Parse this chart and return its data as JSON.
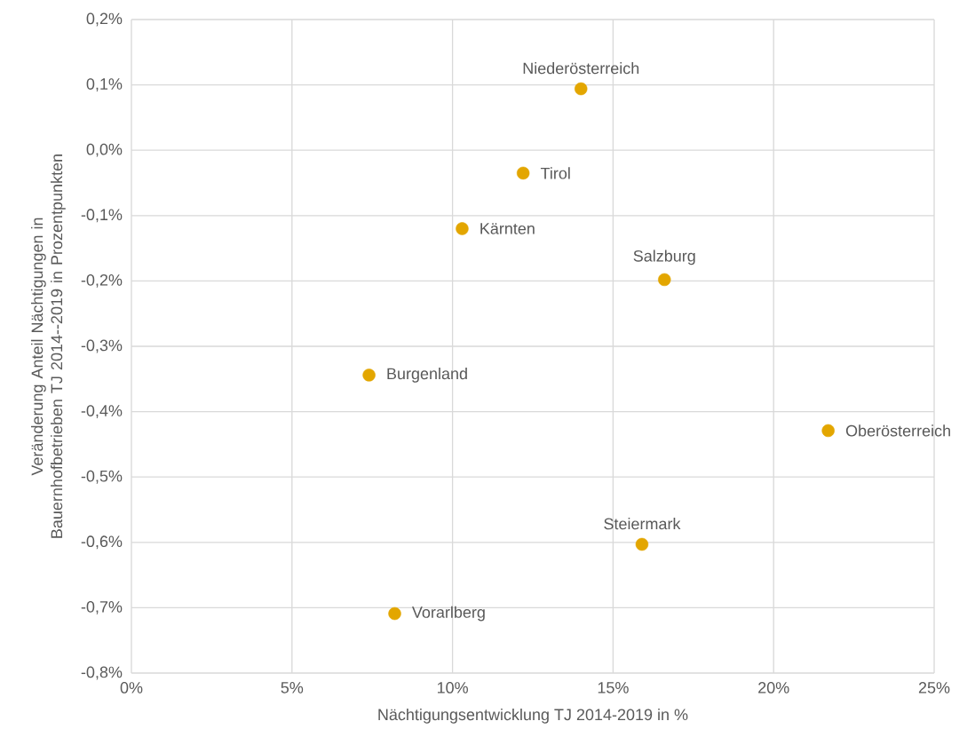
{
  "chart_data": {
    "type": "scatter",
    "xlabel": "Nächtigungsentwicklung TJ 2014-2019 in %",
    "ylabel": "Veränderung Anteil Nächtigungen in Bauernhofbetrieben TJ 2014--2019 in Prozentpunkten",
    "xlim": [
      0,
      25
    ],
    "ylim": [
      -0.8,
      0.2
    ],
    "xticks": [
      {
        "value": 0,
        "label": "0%"
      },
      {
        "value": 5,
        "label": "5%"
      },
      {
        "value": 10,
        "label": "10%"
      },
      {
        "value": 15,
        "label": "15%"
      },
      {
        "value": 20,
        "label": "20%"
      },
      {
        "value": 25,
        "label": "25%"
      }
    ],
    "yticks": [
      {
        "value": -0.8,
        "label": "-0,8%"
      },
      {
        "value": -0.7,
        "label": "-0,7%"
      },
      {
        "value": -0.6,
        "label": "-0,6%"
      },
      {
        "value": -0.5,
        "label": "-0,5%"
      },
      {
        "value": -0.4,
        "label": "-0,4%"
      },
      {
        "value": -0.3,
        "label": "-0,3%"
      },
      {
        "value": -0.2,
        "label": "-0,2%"
      },
      {
        "value": -0.1,
        "label": "-0,1%"
      },
      {
        "value": 0,
        "label": "0,0%"
      },
      {
        "value": 0.1,
        "label": "0,1%"
      },
      {
        "value": 0.2,
        "label": "0,2%"
      }
    ],
    "grid": true,
    "marker": "circle",
    "series": [
      {
        "name": "Niederösterreich",
        "color": "#e3a600",
        "x": [
          14.0
        ],
        "values": [
          0.094
        ]
      },
      {
        "name": "Tirol",
        "color": "#e3a600",
        "x": [
          12.2
        ],
        "values": [
          -0.035
        ]
      },
      {
        "name": "Kärnten",
        "color": "#e3a600",
        "x": [
          10.3
        ],
        "values": [
          -0.12
        ]
      },
      {
        "name": "Salzburg",
        "color": "#e3a600",
        "x": [
          16.6
        ],
        "values": [
          -0.198
        ]
      },
      {
        "name": "Burgenland",
        "color": "#e3a600",
        "x": [
          7.4
        ],
        "values": [
          -0.344
        ]
      },
      {
        "name": "Oberösterreich",
        "color": "#e3a600",
        "x": [
          21.7
        ],
        "values": [
          -0.429
        ]
      },
      {
        "name": "Steiermark",
        "color": "#e3a600",
        "x": [
          15.9
        ],
        "values": [
          -0.603
        ]
      },
      {
        "name": "Vorarlberg",
        "color": "#e3a600",
        "x": [
          8.2
        ],
        "values": [
          -0.709
        ]
      }
    ]
  }
}
